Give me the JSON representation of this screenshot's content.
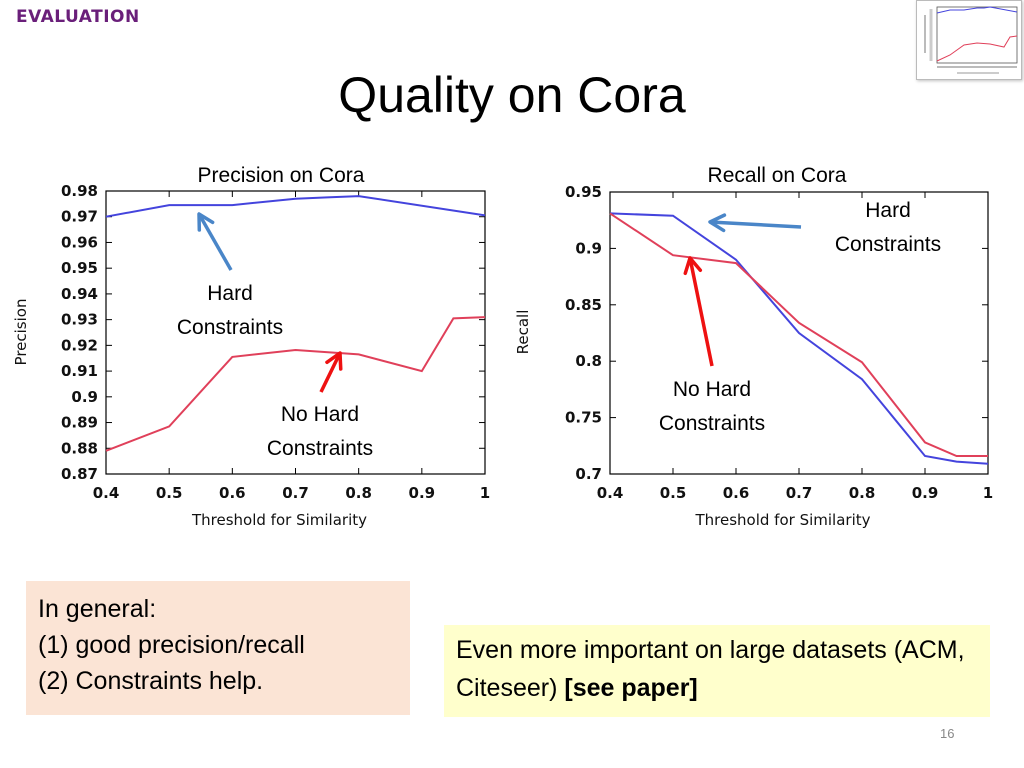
{
  "slide": {
    "section_tag": "EVALUATION",
    "title": "Quality on Cora",
    "page_number": "16"
  },
  "annotations": {
    "left_hard": [
      "Hard",
      "Constraints"
    ],
    "left_nohard": [
      "No Hard",
      "Constraints"
    ],
    "right_hard": [
      "Hard",
      "Constraints"
    ],
    "right_nohard": [
      "No Hard",
      "Constraints"
    ]
  },
  "boxes": {
    "general": [
      "In general:",
      "(1) good precision/recall",
      "(2) Constraints help."
    ],
    "important_text": "Even more important on large datasets (ACM, Citeseer) ",
    "important_bold": "[see paper]"
  },
  "colors": {
    "hard": "#4444dd",
    "nohard": "#e0405a",
    "arrow_blue": "#4a86c8",
    "arrow_red": "#ee1111"
  },
  "chart_data": [
    {
      "type": "line",
      "title": "Precision on Cora",
      "xlabel": "Threshold for Similarity",
      "ylabel": "Precision",
      "xlim": [
        0.4,
        1.0
      ],
      "ylim": [
        0.87,
        0.98
      ],
      "xticks": [
        "0.4",
        "0.5",
        "0.6",
        "0.7",
        "0.8",
        "0.9",
        "1"
      ],
      "yticks": [
        "0.87",
        "0.88",
        "0.89",
        "0.9",
        "0.91",
        "0.92",
        "0.93",
        "0.94",
        "0.95",
        "0.96",
        "0.97",
        "0.98"
      ],
      "series": [
        {
          "key": "hard",
          "x": [
            0.4,
            0.5,
            0.55,
            0.6,
            0.7,
            0.75,
            0.8,
            1.0
          ],
          "y": [
            0.97,
            0.9745,
            0.9745,
            0.9745,
            0.977,
            0.9775,
            0.978,
            0.9705
          ]
        },
        {
          "key": "nohard",
          "x": [
            0.4,
            0.5,
            0.6,
            0.7,
            0.8,
            0.9,
            0.95,
            1.0
          ],
          "y": [
            0.879,
            0.8885,
            0.9155,
            0.9182,
            0.9165,
            0.91,
            0.9305,
            0.931
          ]
        }
      ]
    },
    {
      "type": "line",
      "title": "Recall on Cora",
      "xlabel": "Threshold for Similarity",
      "ylabel": "Recall",
      "xlim": [
        0.4,
        1.0
      ],
      "ylim": [
        0.7,
        0.95
      ],
      "xticks": [
        "0.4",
        "0.5",
        "0.6",
        "0.7",
        "0.8",
        "0.9",
        "1"
      ],
      "yticks": [
        "0.7",
        "0.75",
        "0.8",
        "0.85",
        "0.9",
        "0.95"
      ],
      "series": [
        {
          "key": "hard",
          "x": [
            0.4,
            0.5,
            0.6,
            0.7,
            0.8,
            0.9,
            0.95,
            1.0
          ],
          "y": [
            0.931,
            0.929,
            0.89,
            0.825,
            0.784,
            0.716,
            0.711,
            0.709
          ]
        },
        {
          "key": "nohard",
          "x": [
            0.4,
            0.5,
            0.6,
            0.7,
            0.8,
            0.9,
            0.95,
            1.0
          ],
          "y": [
            0.931,
            0.894,
            0.887,
            0.834,
            0.799,
            0.728,
            0.716,
            0.716
          ]
        }
      ]
    }
  ]
}
